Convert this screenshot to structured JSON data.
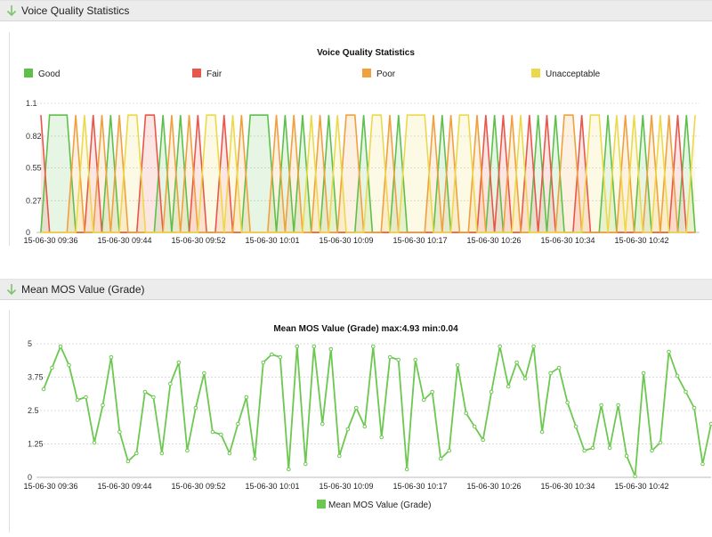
{
  "sections": [
    {
      "header": "Voice Quality Statistics"
    },
    {
      "header": "Mean MOS Value (Grade)"
    }
  ],
  "colors": {
    "good": "#5ec04a",
    "fair": "#e8574a",
    "poor": "#f0a03c",
    "unacceptable": "#ecd94a",
    "mos": "#6cc850"
  },
  "chart_data": [
    {
      "type": "line",
      "title": "Voice Quality Statistics",
      "legend": [
        "Good",
        "Fair",
        "Poor",
        "Unacceptable"
      ],
      "legend_position": "top",
      "yticks": [
        "1.1",
        "0.82",
        "0.55",
        "0.27",
        "0"
      ],
      "ylim": [
        0,
        1.1
      ],
      "xticks": [
        "15-06-30 09:36",
        "15-06-30 09:44",
        "15-06-30 09:52",
        "15-06-30 10:01",
        "15-06-30 10:09",
        "15-06-30 10:17",
        "15-06-30 10:26",
        "15-06-30 10:34",
        "15-06-30 10:42"
      ],
      "grid": true,
      "series": [
        {
          "name": "Good",
          "color": "#5ec04a",
          "values": [
            0,
            1,
            1,
            1,
            0,
            0,
            0,
            0,
            1,
            0,
            0,
            0,
            0,
            0,
            1,
            0,
            1,
            0,
            0,
            0,
            0,
            0,
            0,
            0,
            1,
            1,
            1,
            0,
            1,
            0,
            1,
            0,
            0,
            1,
            0,
            0,
            0,
            1,
            0,
            0,
            0,
            1,
            0,
            0,
            0,
            0,
            1,
            0,
            0,
            0,
            0,
            0,
            1,
            0,
            0,
            0,
            0,
            1,
            0,
            1,
            0,
            0,
            0,
            0,
            0,
            1,
            0,
            0,
            0,
            1,
            0,
            0,
            0,
            0,
            1,
            0
          ]
        },
        {
          "name": "Fair",
          "color": "#e8574a",
          "values": [
            1,
            0,
            0,
            0,
            0,
            0,
            1,
            0,
            0,
            0,
            0,
            0,
            1,
            1,
            0,
            0,
            0,
            0,
            1,
            0,
            0,
            1,
            0,
            0,
            0,
            0,
            0,
            0,
            0,
            0,
            0,
            0,
            0,
            0,
            0,
            0,
            0,
            0,
            0,
            0,
            0,
            0,
            0,
            0,
            0,
            0,
            0,
            0,
            0,
            0,
            0,
            1,
            0,
            1,
            0,
            0,
            1,
            0,
            1,
            0,
            0,
            0,
            1,
            0,
            0,
            0,
            0,
            0,
            0,
            0,
            0,
            0,
            0,
            1,
            0,
            0
          ]
        },
        {
          "name": "Poor",
          "color": "#f0a03c",
          "values": [
            0,
            0,
            0,
            0,
            1,
            0,
            0,
            1,
            0,
            1,
            0,
            0,
            0,
            0,
            0,
            1,
            0,
            1,
            0,
            0,
            0,
            0,
            0,
            1,
            0,
            0,
            0,
            1,
            0,
            1,
            0,
            0,
            1,
            0,
            0,
            1,
            1,
            0,
            0,
            0,
            1,
            0,
            0,
            0,
            0,
            1,
            0,
            1,
            0,
            0,
            1,
            0,
            0,
            0,
            1,
            0,
            0,
            0,
            0,
            0,
            1,
            1,
            0,
            0,
            0,
            0,
            0,
            1,
            0,
            0,
            1,
            0,
            1,
            0,
            0,
            0
          ]
        },
        {
          "name": "Unacceptable",
          "color": "#ecd94a",
          "values": [
            0,
            0,
            0,
            0,
            0,
            1,
            0,
            0,
            0,
            0,
            1,
            1,
            0,
            0,
            0,
            0,
            0,
            0,
            0,
            1,
            1,
            0,
            1,
            0,
            0,
            0,
            0,
            0,
            0,
            0,
            0,
            1,
            0,
            0,
            1,
            0,
            0,
            0,
            1,
            1,
            0,
            0,
            1,
            1,
            1,
            0,
            0,
            0,
            1,
            1,
            0,
            0,
            0,
            0,
            0,
            1,
            0,
            0,
            0,
            0,
            0,
            0,
            0,
            1,
            1,
            0,
            1,
            0,
            1,
            0,
            0,
            1,
            0,
            0,
            0,
            1
          ]
        }
      ]
    },
    {
      "type": "line",
      "title": "Mean MOS Value (Grade) max:4.93 min:0.04",
      "legend": [
        "Mean MOS Value (Grade)"
      ],
      "legend_position": "bottom",
      "yticks": [
        "5",
        "3.75",
        "2.5",
        "1.25",
        "0"
      ],
      "ylim": [
        0,
        5
      ],
      "xticks": [
        "15-06-30 09:36",
        "15-06-30 09:44",
        "15-06-30 09:52",
        "15-06-30 10:01",
        "15-06-30 10:09",
        "15-06-30 10:17",
        "15-06-30 10:26",
        "15-06-30 10:34",
        "15-06-30 10:42"
      ],
      "grid": true,
      "series": [
        {
          "name": "Mean MOS Value (Grade)",
          "color": "#6cc850",
          "values": [
            3.3,
            4.1,
            4.9,
            4.2,
            2.9,
            3.0,
            1.3,
            2.7,
            4.5,
            1.7,
            0.6,
            0.9,
            3.2,
            3.0,
            0.9,
            3.5,
            4.3,
            1.0,
            2.6,
            3.9,
            1.7,
            1.6,
            0.9,
            2.0,
            3.0,
            0.7,
            4.3,
            4.6,
            4.5,
            0.3,
            4.9,
            0.5,
            4.9,
            2.0,
            4.8,
            0.8,
            1.8,
            2.6,
            1.9,
            4.9,
            1.5,
            4.5,
            4.4,
            0.3,
            4.4,
            2.9,
            3.2,
            0.7,
            1.0,
            4.2,
            2.4,
            1.9,
            1.4,
            3.2,
            4.9,
            3.4,
            4.3,
            3.7,
            4.9,
            1.7,
            3.9,
            4.1,
            2.8,
            1.9,
            1.0,
            1.1,
            2.7,
            1.1,
            2.7,
            0.8,
            0.04,
            3.9,
            1.0,
            1.3,
            4.7,
            3.8,
            3.2,
            2.6,
            0.5,
            2.0
          ]
        }
      ]
    }
  ]
}
